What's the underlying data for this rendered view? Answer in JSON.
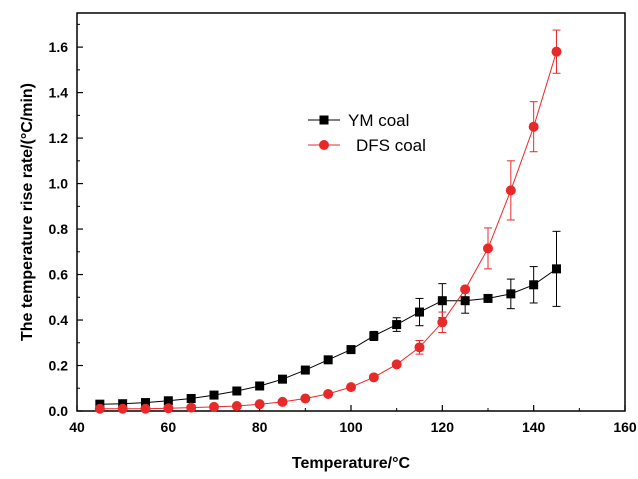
{
  "chart_data": {
    "type": "line",
    "xlabel": "Temperature/°C",
    "ylabel": "The temperature rise rate/(°C/min)",
    "xlim": [
      40,
      160
    ],
    "ylim": [
      0,
      1.75
    ],
    "x_ticks": [
      40,
      60,
      80,
      100,
      120,
      140,
      160
    ],
    "x_tick_labels": [
      "40",
      "60",
      "80",
      "100",
      "120",
      "140",
      "160"
    ],
    "y_ticks": [
      0,
      0.2,
      0.4,
      0.6,
      0.8,
      1.0,
      1.2,
      1.4,
      1.6
    ],
    "y_tick_labels": [
      "0.0",
      "0.2",
      "0.4",
      "0.6",
      "0.8",
      "1.0",
      "1.2",
      "1.4",
      "1.6"
    ],
    "grid": false,
    "legend": "upper-center",
    "series": [
      {
        "name": "YM coal",
        "color": "#000000",
        "marker": "square",
        "x": [
          45,
          50,
          55,
          60,
          65,
          70,
          75,
          80,
          85,
          90,
          95,
          100,
          105,
          110,
          115,
          120,
          125,
          130,
          135,
          140,
          145
        ],
        "y": [
          0.03,
          0.032,
          0.037,
          0.045,
          0.055,
          0.07,
          0.088,
          0.11,
          0.14,
          0.18,
          0.225,
          0.27,
          0.33,
          0.38,
          0.435,
          0.485,
          0.485,
          0.495,
          0.515,
          0.555,
          0.625
        ],
        "err": [
          0,
          0,
          0,
          0,
          0,
          0,
          0,
          0,
          0,
          0,
          0,
          0,
          0.02,
          0.03,
          0.06,
          0.075,
          0.055,
          0,
          0.065,
          0.08,
          0.165
        ]
      },
      {
        "name": "DFS coal",
        "color": "#e8292a",
        "marker": "circle",
        "x": [
          45,
          50,
          55,
          60,
          65,
          70,
          75,
          80,
          85,
          90,
          95,
          100,
          105,
          110,
          115,
          120,
          125,
          130,
          135,
          140,
          145
        ],
        "y": [
          0.01,
          0.01,
          0.01,
          0.012,
          0.015,
          0.018,
          0.022,
          0.03,
          0.04,
          0.055,
          0.075,
          0.105,
          0.148,
          0.205,
          0.28,
          0.39,
          0.535,
          0.715,
          0.97,
          1.25,
          1.58
        ],
        "err": [
          0,
          0,
          0,
          0,
          0,
          0,
          0,
          0,
          0,
          0,
          0,
          0,
          0,
          0,
          0.03,
          0.045,
          0,
          0.09,
          0.13,
          0.11,
          0.095
        ]
      }
    ]
  }
}
